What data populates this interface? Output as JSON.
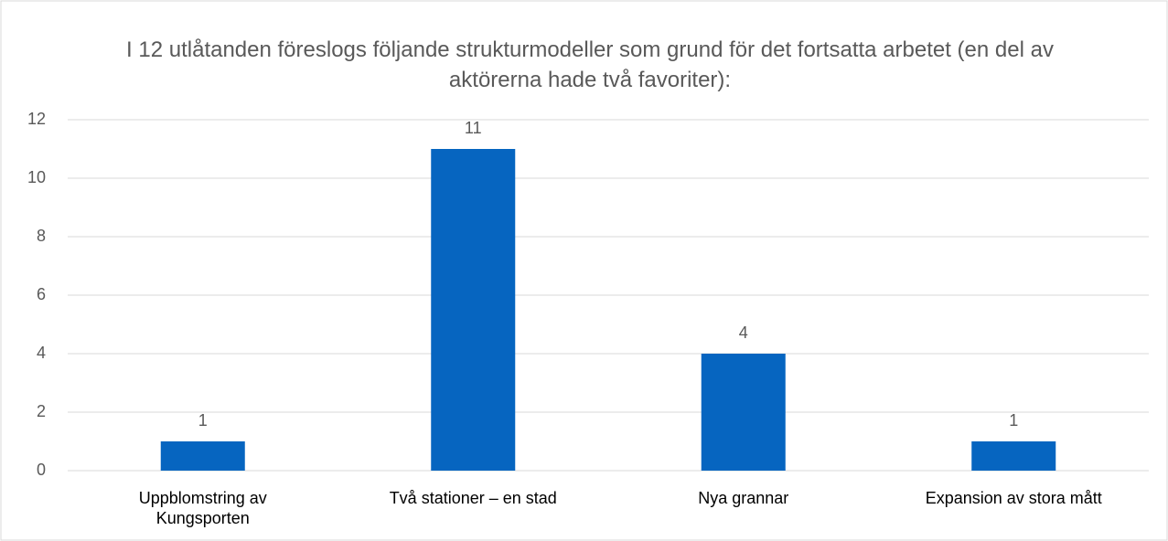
{
  "chart_data": {
    "type": "bar",
    "title": "I 12 utlåtanden föreslogs följande strukturmodeller som grund för det fortsatta arbetet (en del av aktörerna hade två favoriter):",
    "categories": [
      "Uppblomstring av Kungsporten",
      "Två stationer – en stad",
      "Nya grannar",
      "Expansion av stora mått"
    ],
    "values": [
      1,
      11,
      4,
      1
    ],
    "color": "#0665c0",
    "ylim": [
      0,
      12
    ],
    "yticks": [
      0,
      2,
      4,
      6,
      8,
      10,
      12
    ],
    "grid": true,
    "data_labels": true
  }
}
